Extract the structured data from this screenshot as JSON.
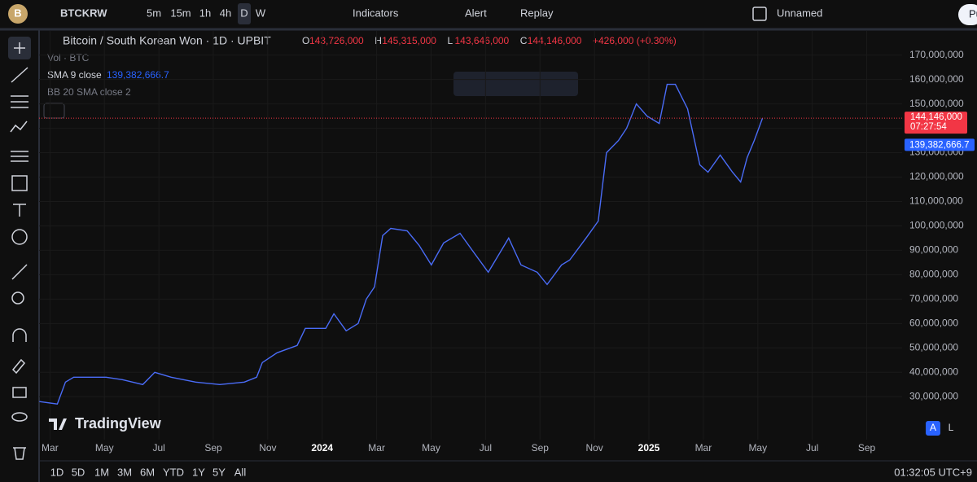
{
  "toolbar": {
    "avatar": "B",
    "symbol": "BTCKRW",
    "intervals": [
      "5m",
      "15m",
      "1h",
      "4h",
      "D",
      "W"
    ],
    "indicators": "Indicators",
    "alert": "Alert",
    "replay": "Replay",
    "layout": "Unnamed",
    "publish": "Pu"
  },
  "legend": {
    "title": "Bitcoin / South Korean Won · 1D · UPBIT",
    "ohlc": [
      [
        "O",
        "143,726,000"
      ],
      [
        "H",
        "145,315,000"
      ],
      [
        "L",
        "143,646,000"
      ],
      [
        "C",
        "144,146,000"
      ]
    ],
    "change": "+426,000 (+0.30%)",
    "volume": "Vol · BTC",
    "sma": "SMA 9 close",
    "sma_value": "139,382,666.7",
    "bb": "BB 20 SMA close 2"
  },
  "chart_data": {
    "type": "line",
    "color": "#4a6cf7",
    "x": [
      1.61,
      2.27,
      2.57,
      2.87,
      4.06,
      4.66,
      5.41,
      5.85,
      6.45,
      7.35,
      8.24,
      9.14,
      9.59,
      9.8,
      10.34,
      11.08,
      11.38,
      12.13,
      12.43,
      12.88,
      13.32,
      13.62,
      13.92,
      14.22,
      14.52,
      15.12,
      15.56,
      16.01,
      16.46,
      17.06,
      17.51,
      18.1,
      18.85,
      19.3,
      19.9,
      20.26,
      20.79,
      21.09,
      21.69,
      22.14,
      22.44,
      22.88,
      23.18,
      23.54,
      23.93,
      24.38,
      24.67,
      24.97,
      25.42,
      25.87,
      26.17,
      26.62,
      27.07,
      27.37,
      27.61,
      27.87,
      28.17
    ],
    "values": [
      28000000,
      27000000,
      36000000,
      38000000,
      38000000,
      37000000,
      35000000,
      40000000,
      38000000,
      36000000,
      35000000,
      36000000,
      38000000,
      44000000,
      48000000,
      51000000,
      58000000,
      58000000,
      64000000,
      57000000,
      60000000,
      70000000,
      75000000,
      96000000,
      99000000,
      98000000,
      92000000,
      84000000,
      93000000,
      97000000,
      90000000,
      81000000,
      95000000,
      84000000,
      81000000,
      76000000,
      84000000,
      86000000,
      95000000,
      102000000,
      130000000,
      135000000,
      140000000,
      150000000,
      145000000,
      142000000,
      158000000,
      158000000,
      148000000,
      125000000,
      122000000,
      129000000,
      122000000,
      118000000,
      128000000,
      135000000,
      144146000
    ],
    "xlim": [
      1.6,
      33.3
    ],
    "xticks": [
      {
        "value": 2,
        "label": "Mar"
      },
      {
        "value": 4,
        "label": "May"
      },
      {
        "value": 6,
        "label": "Jul"
      },
      {
        "value": 8,
        "label": "Sep"
      },
      {
        "value": 10,
        "label": "Nov"
      },
      {
        "value": 12,
        "label": "2024"
      },
      {
        "value": 14,
        "label": "Mar"
      },
      {
        "value": 16,
        "label": "May"
      },
      {
        "value": 18,
        "label": "Jul"
      },
      {
        "value": 20,
        "label": "Sep"
      },
      {
        "value": 22,
        "label": "Nov"
      },
      {
        "value": 24,
        "label": "2025"
      },
      {
        "value": 26,
        "label": "Mar"
      },
      {
        "value": 28,
        "label": "May"
      },
      {
        "value": 30,
        "label": "Jul"
      },
      {
        "value": 32,
        "label": "Sep"
      }
    ],
    "ylim": [
      12400000,
      179900000
    ],
    "yticks": [
      {
        "value": 30000000,
        "label": "30,000,000"
      },
      {
        "value": 40000000,
        "label": "40,000,000"
      },
      {
        "value": 50000000,
        "label": "50,000,000"
      },
      {
        "value": 60000000,
        "label": "60,000,000"
      },
      {
        "value": 70000000,
        "label": "70,000,000"
      },
      {
        "value": 80000000,
        "label": "80,000,000"
      },
      {
        "value": 90000000,
        "label": "90,000,000"
      },
      {
        "value": 100000000,
        "label": "100,000,000"
      },
      {
        "value": 110000000,
        "label": "110,000,000"
      },
      {
        "value": 120000000,
        "label": "120,000,000"
      },
      {
        "value": 130000000,
        "label": "130,000,000"
      },
      {
        "value": 140000000,
        "label": "140,000,000"
      },
      {
        "value": 150000000,
        "label": "150,000,000"
      },
      {
        "value": 160000000,
        "label": "160,000,000"
      },
      {
        "value": 170000000,
        "label": "170,000,000"
      }
    ],
    "last_price": {
      "value": 144146000,
      "label": "144,146,000",
      "countdown": "07:27:54",
      "color": "#f23645"
    },
    "sma_price": {
      "value": 139382666.7,
      "label": "139,382,666.7",
      "color": "#2962ff"
    }
  },
  "watermark": "TradingView",
  "scale_buttons": [
    "A",
    "L"
  ],
  "ranges": [
    "1D",
    "5D",
    "1M",
    "3M",
    "6M",
    "YTD",
    "1Y",
    "5Y",
    "All"
  ],
  "clock": "01:32:05 UTC+9"
}
